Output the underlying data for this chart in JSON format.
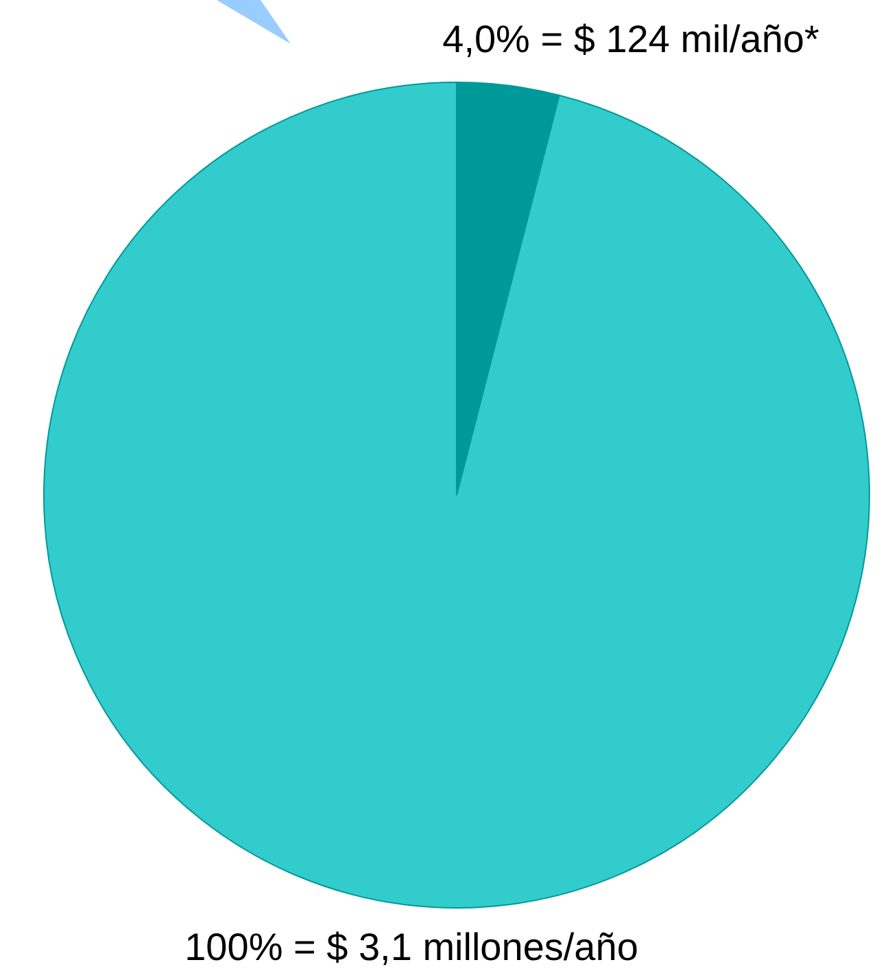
{
  "chart_data": {
    "type": "pie",
    "categories": [
      "4,0% = $ 124 mil/año*",
      null
    ],
    "values": [
      4,
      96
    ],
    "colors": [
      "#009999",
      "#33cccc"
    ],
    "annotations": [
      "100% = $ 3,1 millones/año"
    ]
  }
}
